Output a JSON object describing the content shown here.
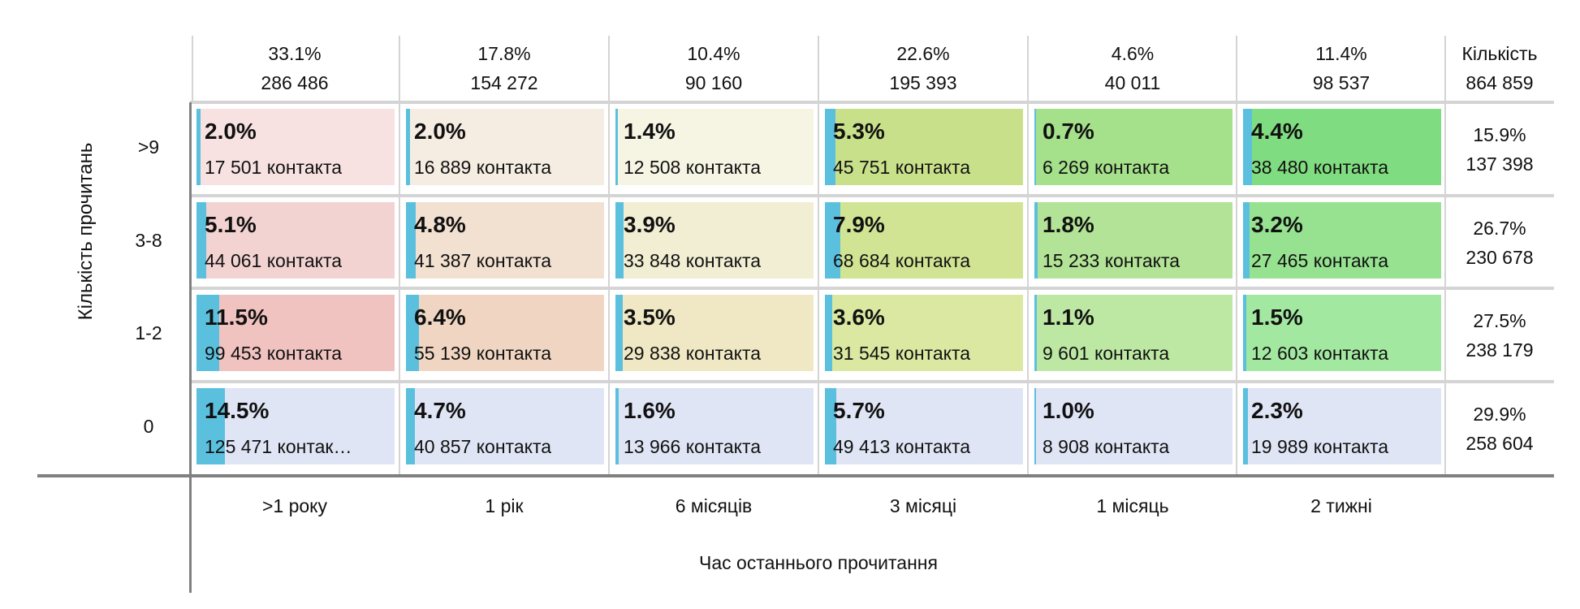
{
  "chart_data": {
    "type": "heatmap",
    "xlabel": "Час останнього прочитання",
    "ylabel": "Кількість прочитань",
    "columns": [
      {
        "label": ">1 року",
        "pct": "33.1%",
        "count": "286 486"
      },
      {
        "label": "1 рік",
        "pct": "17.8%",
        "count": "154 272"
      },
      {
        "label": "6 місяців",
        "pct": "10.4%",
        "count": "90 160"
      },
      {
        "label": "3 місяці",
        "pct": "22.6%",
        "count": "195 393"
      },
      {
        "label": "1 місяць",
        "pct": "4.6%",
        "count": "40 011"
      },
      {
        "label": "2 тижні",
        "pct": "11.4%",
        "count": "98 537"
      }
    ],
    "total": {
      "label": "Кількість",
      "count": "864 859"
    },
    "rows": [
      {
        "label": ">9",
        "pct": "15.9%",
        "count": "137 398",
        "colors": [
          "#f7e2e1",
          "#f5ece2",
          "#f6f4e3",
          "#c9e08a",
          "#a5e08b",
          "#80dc80"
        ],
        "cells": [
          {
            "value": 2.0,
            "pct": "2.0%",
            "count": "17 501 контакта"
          },
          {
            "value": 2.0,
            "pct": "2.0%",
            "count": "16 889 контакта"
          },
          {
            "value": 1.4,
            "pct": "1.4%",
            "count": "12 508 контакта"
          },
          {
            "value": 5.3,
            "pct": "5.3%",
            "count": "45 751 контакта"
          },
          {
            "value": 0.7,
            "pct": "0.7%",
            "count": "6 269 контакта"
          },
          {
            "value": 4.4,
            "pct": "4.4%",
            "count": "38 480 контакта"
          }
        ]
      },
      {
        "label": "3-8",
        "pct": "26.7%",
        "count": "230 678",
        "colors": [
          "#f2d3d2",
          "#f2e0d1",
          "#f2eed3",
          "#d1e493",
          "#b2e396",
          "#96e290"
        ],
        "cells": [
          {
            "value": 5.1,
            "pct": "5.1%",
            "count": "44 061 контакта"
          },
          {
            "value": 4.8,
            "pct": "4.8%",
            "count": "41 387 контакта"
          },
          {
            "value": 3.9,
            "pct": "3.9%",
            "count": "33 848 контакта"
          },
          {
            "value": 7.9,
            "pct": "7.9%",
            "count": "68 684 контакта"
          },
          {
            "value": 1.8,
            "pct": "1.8%",
            "count": "15 233 контакта"
          },
          {
            "value": 3.2,
            "pct": "3.2%",
            "count": "27 465 контакта"
          }
        ]
      },
      {
        "label": "1-2",
        "pct": "27.5%",
        "count": "238 179",
        "colors": [
          "#f0c2c0",
          "#f0d6c2",
          "#f0e8c4",
          "#dbe8a1",
          "#bde8a3",
          "#a3e8a0"
        ],
        "cells": [
          {
            "value": 11.5,
            "pct": "11.5%",
            "count": "99 453 контакта"
          },
          {
            "value": 6.4,
            "pct": "6.4%",
            "count": "55 139 контакта"
          },
          {
            "value": 3.5,
            "pct": "3.5%",
            "count": "29 838 контакта"
          },
          {
            "value": 3.6,
            "pct": "3.6%",
            "count": "31 545 контакта"
          },
          {
            "value": 1.1,
            "pct": "1.1%",
            "count": "9 601 контакта"
          },
          {
            "value": 1.5,
            "pct": "1.5%",
            "count": "12 603 контакта"
          }
        ]
      },
      {
        "label": "0",
        "pct": "29.9%",
        "count": "258 604",
        "colors": [
          "#e0e5f5",
          "#e0e5f5",
          "#e0e5f5",
          "#e0e5f5",
          "#e0e5f5",
          "#e0e5f5"
        ],
        "cells": [
          {
            "value": 14.5,
            "pct": "14.5%",
            "count": "125 471 контак…"
          },
          {
            "value": 4.7,
            "pct": "4.7%",
            "count": "40 857 контакта"
          },
          {
            "value": 1.6,
            "pct": "1.6%",
            "count": "13 966 контакта"
          },
          {
            "value": 5.7,
            "pct": "5.7%",
            "count": "49 413 контакта"
          },
          {
            "value": 1.0,
            "pct": "1.0%",
            "count": "8 908 контакта"
          },
          {
            "value": 2.3,
            "pct": "2.3%",
            "count": "19 989 контакта"
          }
        ]
      }
    ],
    "bar_color": "#5bc0de"
  }
}
